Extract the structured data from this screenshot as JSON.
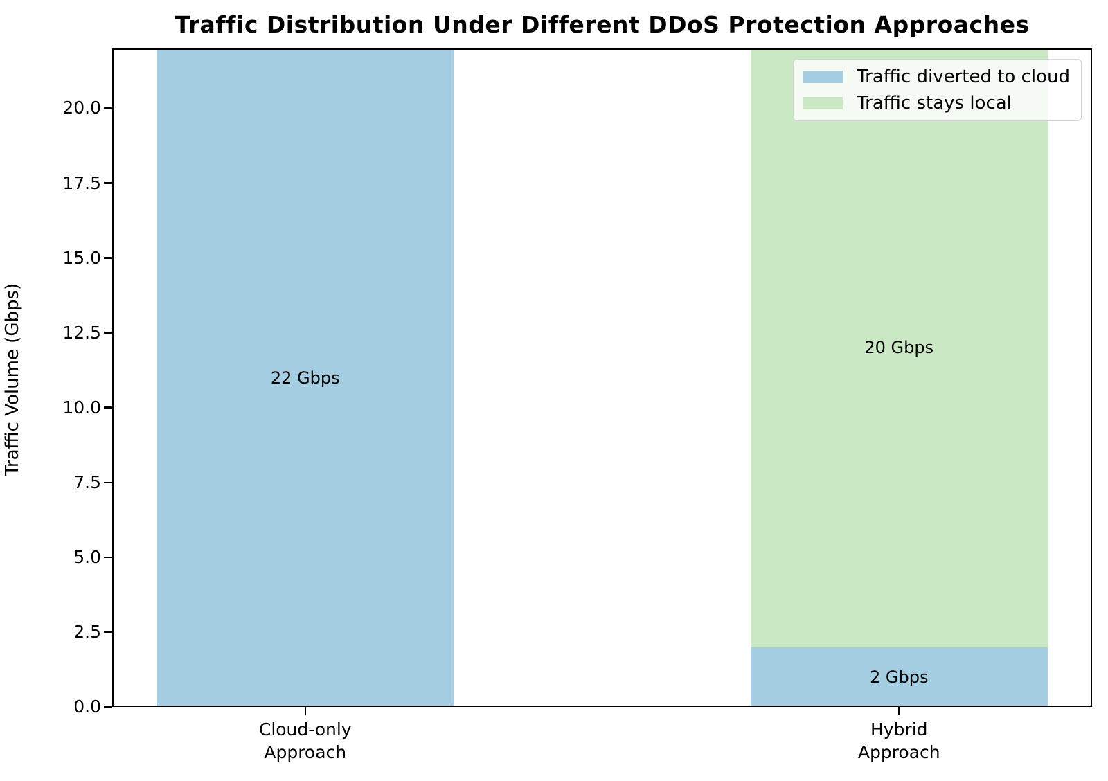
{
  "figure": {
    "background": "#ffffff"
  },
  "chart_data": {
    "type": "bar",
    "stacked": true,
    "title": "Traffic Distribution Under Different DDoS Protection Approaches",
    "xlabel": "",
    "ylabel": "Traffic Volume (Gbps)",
    "categories": [
      "Cloud-only\nApproach",
      "Hybrid\nApproach"
    ],
    "series": [
      {
        "name": "Traffic diverted to cloud",
        "color": "#a6cee3",
        "values": [
          22,
          2
        ],
        "value_labels": [
          "22 Gbps",
          "2 Gbps"
        ]
      },
      {
        "name": "Traffic stays local",
        "color": "#c9e8c3",
        "values": [
          0,
          20
        ],
        "value_labels": [
          "",
          "20 Gbps"
        ]
      }
    ],
    "ylim": [
      0,
      22
    ],
    "yticks": [
      0.0,
      2.5,
      5.0,
      7.5,
      10.0,
      12.5,
      15.0,
      17.5,
      20.0
    ],
    "ytick_labels": [
      "0.0",
      "2.5",
      "5.0",
      "7.5",
      "10.0",
      "12.5",
      "15.0",
      "17.5",
      "20.0"
    ],
    "legend": {
      "position": "upper-right",
      "entries": [
        "Traffic diverted to cloud",
        "Traffic stays local"
      ]
    },
    "grid": false,
    "text_color": "#000000",
    "spine_color": "#000000"
  }
}
